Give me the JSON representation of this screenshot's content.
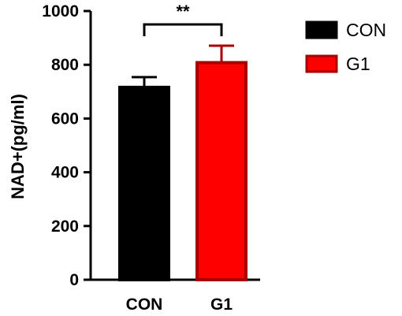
{
  "chart_data": {
    "type": "bar",
    "categories": [
      "CON",
      "G1"
    ],
    "values": [
      716,
      808
    ],
    "errors": [
      38,
      63
    ],
    "ylabel": "NAD+(pg/ml)",
    "ylim": [
      0,
      1000
    ],
    "yticks": [
      "0",
      "200",
      "400",
      "600",
      "800",
      "1000"
    ],
    "grid": false,
    "legend_position": "right",
    "legend": [
      {
        "name": "CON",
        "fill": "#000000",
        "stroke": "#000000"
      },
      {
        "name": "G1",
        "fill": "#ff0000",
        "stroke": "#a80000"
      }
    ],
    "bar_colors": [
      {
        "fill": "#000000",
        "stroke": "#000000"
      },
      {
        "fill": "#ff0000",
        "stroke": "#a80000"
      }
    ],
    "significance": {
      "between": [
        "CON",
        "G1"
      ],
      "label": "**"
    }
  }
}
